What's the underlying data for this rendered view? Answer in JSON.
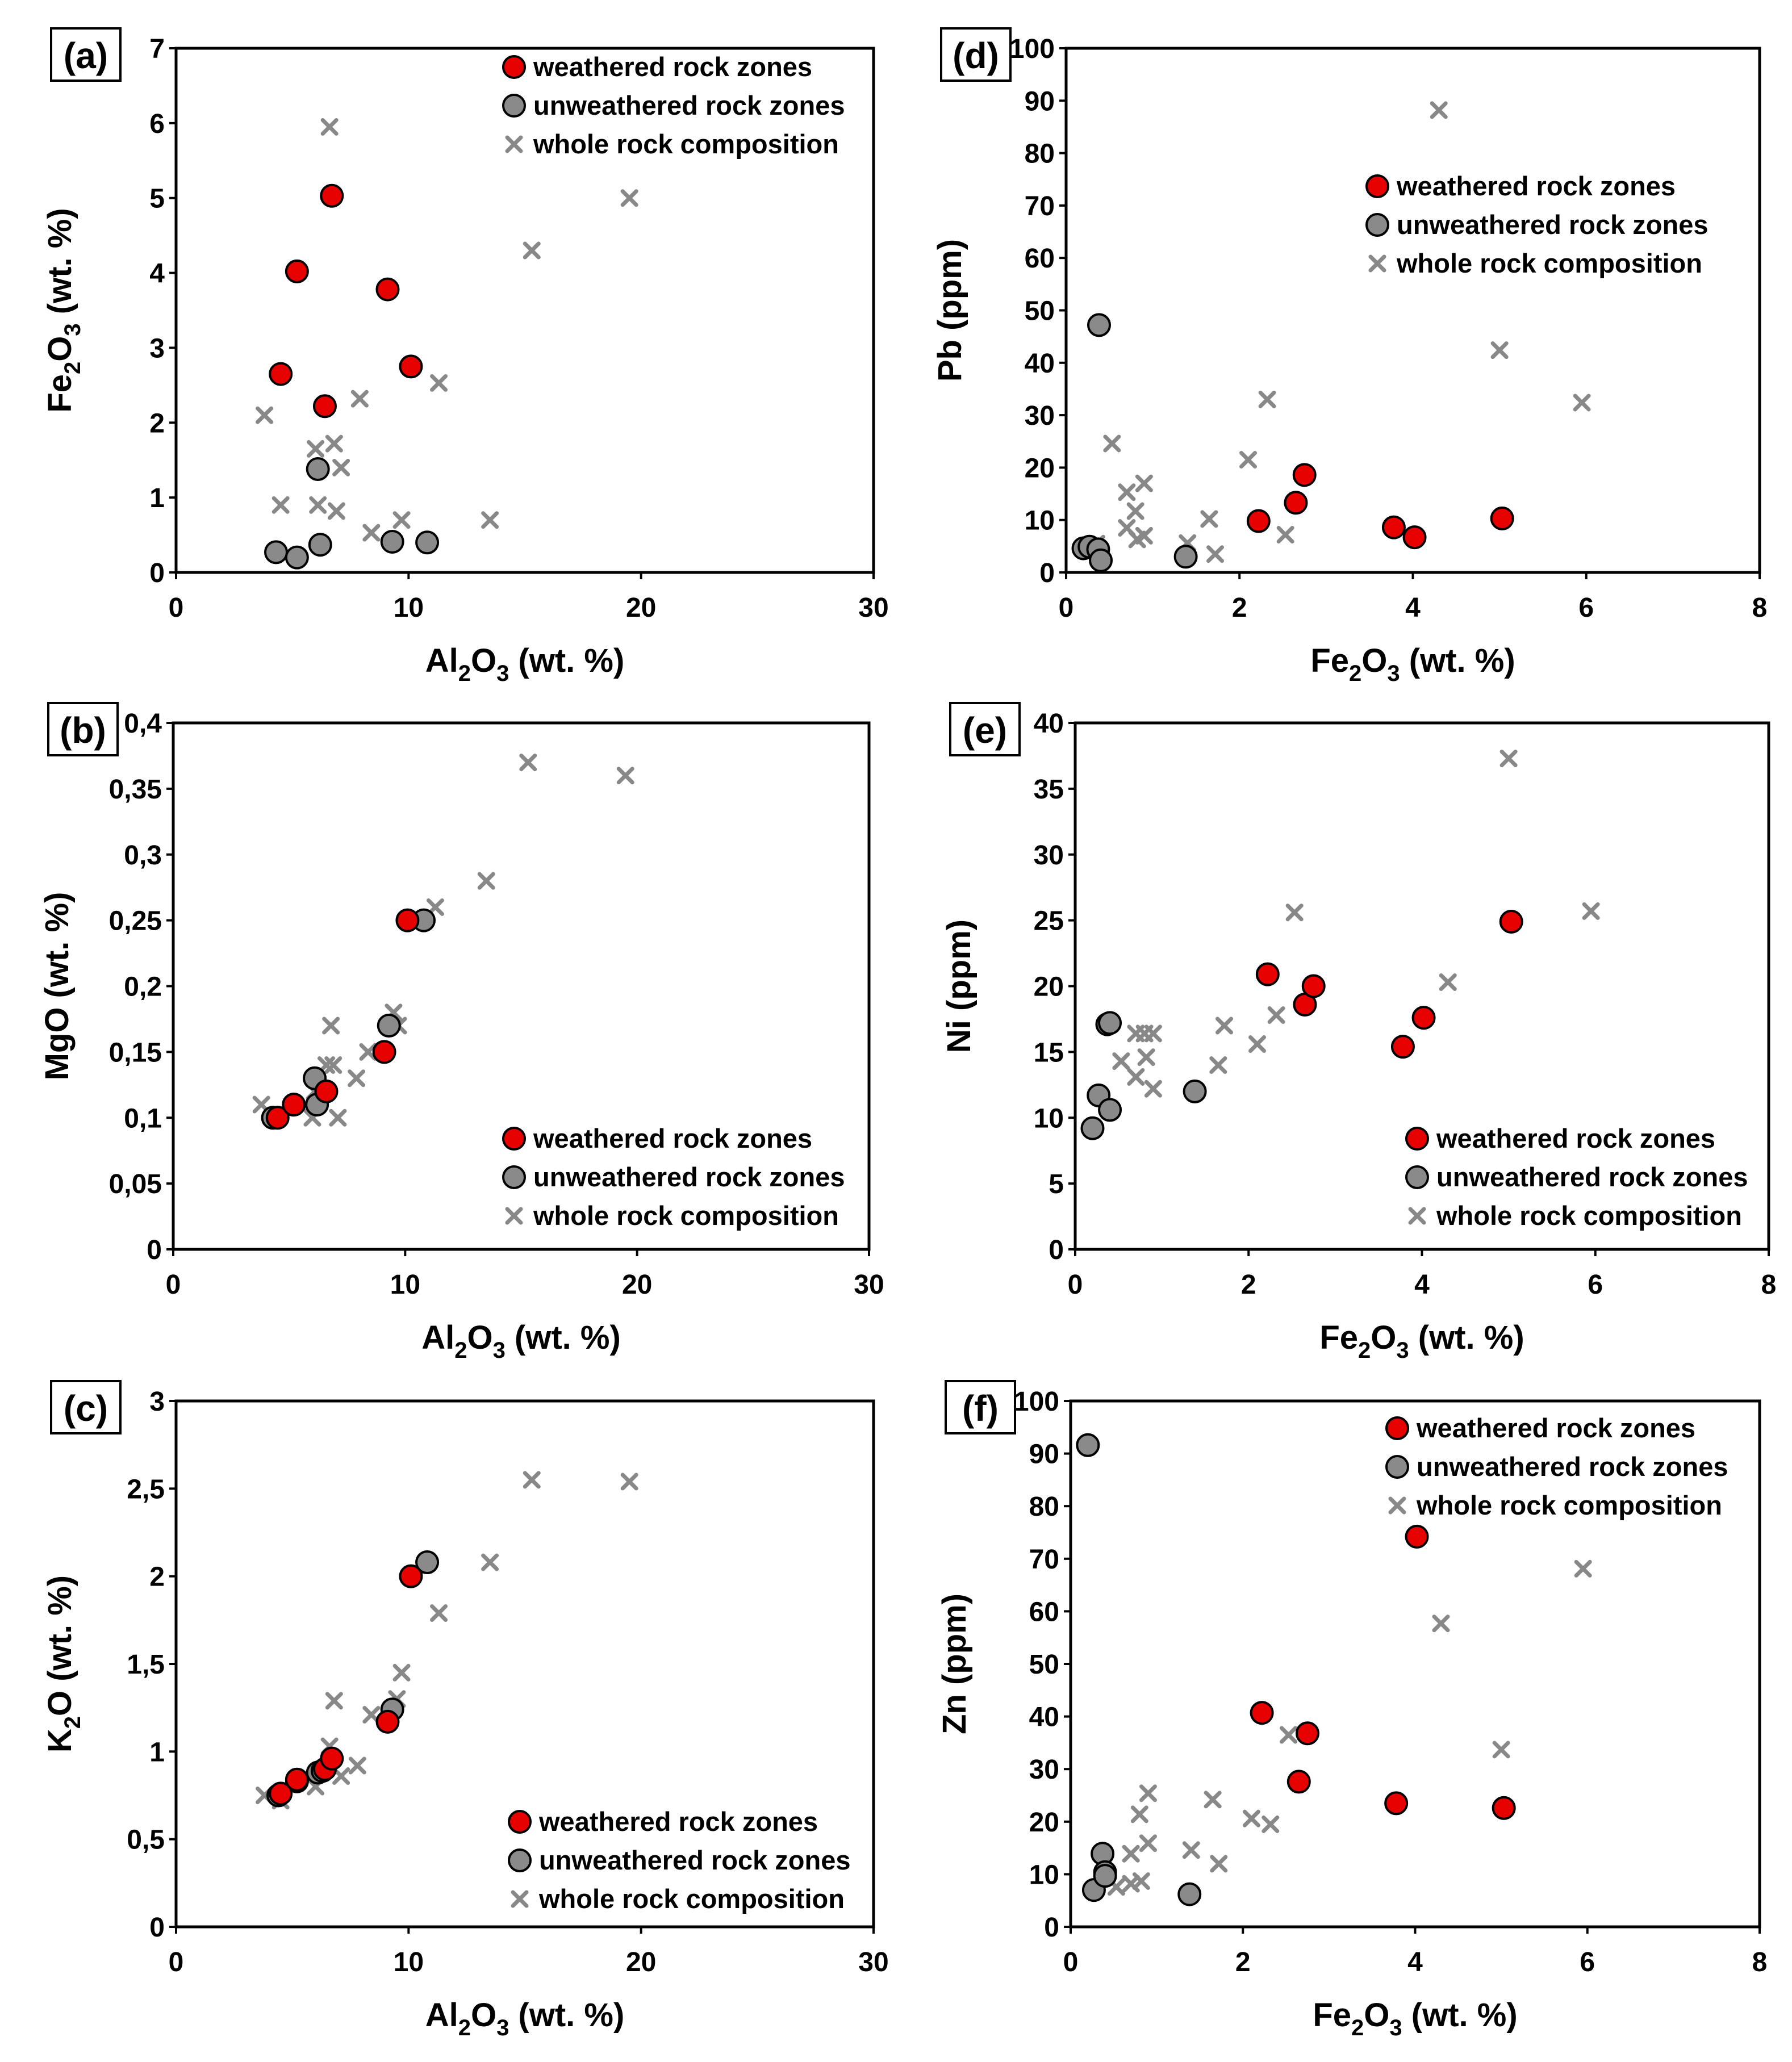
{
  "colors": {
    "weathered": "#e60000",
    "unweathered": "#8a8a8a",
    "whole_rock": "#888888",
    "frame": "#000000"
  },
  "legend": {
    "weathered": "weathered rock zones",
    "unweathered": "unweathered rock zones",
    "whole_rock": "whole rock composition"
  },
  "chart_data": [
    {
      "id": "a",
      "panel_label": "(a)",
      "type": "scatter",
      "xlabel": [
        "Al",
        "2",
        "O",
        "3",
        " (wt. %)"
      ],
      "ylabel": [
        "Fe",
        "2",
        "O",
        "3",
        " (wt. %)"
      ],
      "xlim": [
        0,
        30
      ],
      "ylim": [
        0,
        7
      ],
      "xticks": [
        0,
        10,
        20,
        30
      ],
      "yticks": [
        0,
        1,
        2,
        3,
        4,
        5,
        6,
        7
      ],
      "xtick_labels": [
        "0",
        "10",
        "20",
        "30"
      ],
      "ytick_labels": [
        "0",
        "1",
        "2",
        "3",
        "4",
        "5",
        "6",
        "7"
      ],
      "legend_position": "top-right",
      "series": [
        {
          "name": "weathered rock zones",
          "points": [
            [
              4.5,
              2.65
            ],
            [
              5.2,
              4.02
            ],
            [
              6.4,
              2.22
            ],
            [
              6.7,
              5.03
            ],
            [
              9.1,
              3.78
            ],
            [
              10.1,
              2.75
            ]
          ]
        },
        {
          "name": "unweathered rock zones",
          "points": [
            [
              4.3,
              0.27
            ],
            [
              5.2,
              0.2
            ],
            [
              6.1,
              1.38
            ],
            [
              6.2,
              0.37
            ],
            [
              9.3,
              0.41
            ],
            [
              10.8,
              0.4
            ]
          ]
        },
        {
          "name": "whole rock composition",
          "points": [
            [
              3.8,
              2.1
            ],
            [
              4.5,
              0.9
            ],
            [
              6.0,
              1.65
            ],
            [
              6.1,
              0.9
            ],
            [
              6.6,
              5.95
            ],
            [
              6.8,
              1.72
            ],
            [
              6.9,
              0.82
            ],
            [
              7.1,
              1.4
            ],
            [
              7.9,
              2.32
            ],
            [
              8.4,
              0.53
            ],
            [
              9.7,
              0.7
            ],
            [
              11.3,
              2.53
            ],
            [
              13.5,
              0.7
            ],
            [
              15.3,
              4.3
            ],
            [
              19.5,
              5.0
            ]
          ]
        }
      ]
    },
    {
      "id": "b",
      "panel_label": "(b)",
      "type": "scatter",
      "xlabel": [
        "Al",
        "2",
        "O",
        "3",
        " (wt. %)"
      ],
      "ylabel": [
        "MgO (wt. %)"
      ],
      "xlim": [
        0,
        30
      ],
      "ylim": [
        0,
        0.4
      ],
      "xticks": [
        0,
        10,
        20,
        30
      ],
      "yticks": [
        0,
        0.05,
        0.1,
        0.15,
        0.2,
        0.25,
        0.3,
        0.35,
        0.4
      ],
      "xtick_labels": [
        "0",
        "10",
        "20",
        "30"
      ],
      "ytick_labels": [
        "0",
        "0,05",
        "0,1",
        "0,15",
        "0,2",
        "0,25",
        "0,3",
        "0,35",
        "0,4"
      ],
      "legend_position": "bottom-right",
      "series": [
        {
          "name": "weathered rock zones",
          "points": [
            [
              4.5,
              0.1
            ],
            [
              5.2,
              0.11
            ],
            [
              6.6,
              0.12
            ],
            [
              9.1,
              0.15
            ],
            [
              10.1,
              0.25
            ]
          ]
        },
        {
          "name": "unweathered rock zones",
          "points": [
            [
              4.3,
              0.1
            ],
            [
              5.2,
              0.11
            ],
            [
              6.1,
              0.13
            ],
            [
              6.2,
              0.11
            ],
            [
              9.3,
              0.17
            ],
            [
              10.8,
              0.25
            ]
          ]
        },
        {
          "name": "whole rock composition",
          "points": [
            [
              3.8,
              0.11
            ],
            [
              4.5,
              0.1
            ],
            [
              6.0,
              0.1
            ],
            [
              6.1,
              0.12
            ],
            [
              6.6,
              0.14
            ],
            [
              6.8,
              0.17
            ],
            [
              6.9,
              0.14
            ],
            [
              7.1,
              0.1
            ],
            [
              7.9,
              0.13
            ],
            [
              8.4,
              0.15
            ],
            [
              9.5,
              0.18
            ],
            [
              9.7,
              0.17
            ],
            [
              11.3,
              0.26
            ],
            [
              13.5,
              0.28
            ],
            [
              15.3,
              0.37
            ],
            [
              19.5,
              0.36
            ]
          ]
        }
      ]
    },
    {
      "id": "c",
      "panel_label": "(c)",
      "type": "scatter",
      "xlabel": [
        "Al",
        "2",
        "O",
        "3",
        " (wt. %)"
      ],
      "ylabel": [
        "K",
        "2",
        "O (wt. %)"
      ],
      "xlim": [
        0,
        30
      ],
      "ylim": [
        0,
        3
      ],
      "xticks": [
        0,
        10,
        20,
        30
      ],
      "yticks": [
        0,
        0.5,
        1,
        1.5,
        2,
        2.5,
        3
      ],
      "xtick_labels": [
        "0",
        "10",
        "20",
        "30"
      ],
      "ytick_labels": [
        "0",
        "0,5",
        "1",
        "1,5",
        "2",
        "2,5",
        "3"
      ],
      "legend_position": "bottom-right",
      "series": [
        {
          "name": "weathered rock zones",
          "points": [
            [
              4.5,
              0.76
            ],
            [
              5.2,
              0.84
            ],
            [
              6.4,
              0.9
            ],
            [
              6.7,
              0.96
            ],
            [
              9.1,
              1.17
            ],
            [
              10.1,
              2.0
            ]
          ]
        },
        {
          "name": "unweathered rock zones",
          "points": [
            [
              4.4,
              0.75
            ],
            [
              5.2,
              0.83
            ],
            [
              6.1,
              0.88
            ],
            [
              6.3,
              0.89
            ],
            [
              9.3,
              1.24
            ],
            [
              10.8,
              2.08
            ]
          ]
        },
        {
          "name": "whole rock composition",
          "points": [
            [
              3.8,
              0.75
            ],
            [
              4.5,
              0.72
            ],
            [
              6.0,
              0.8
            ],
            [
              6.6,
              1.03
            ],
            [
              6.8,
              1.29
            ],
            [
              7.1,
              0.86
            ],
            [
              7.8,
              0.92
            ],
            [
              8.4,
              1.21
            ],
            [
              9.5,
              1.3
            ],
            [
              9.7,
              1.45
            ],
            [
              11.3,
              1.79
            ],
            [
              13.5,
              2.08
            ],
            [
              15.3,
              2.55
            ],
            [
              19.5,
              2.54
            ]
          ]
        }
      ]
    },
    {
      "id": "d",
      "panel_label": "(d)",
      "type": "scatter",
      "xlabel": [
        "Fe",
        "2",
        "O",
        "3",
        " (wt. %)"
      ],
      "ylabel": [
        "Pb (ppm)"
      ],
      "xlim": [
        0,
        8
      ],
      "ylim": [
        0,
        100
      ],
      "xticks": [
        0,
        2,
        4,
        6,
        8
      ],
      "yticks": [
        0,
        10,
        20,
        30,
        40,
        50,
        60,
        70,
        80,
        90,
        100
      ],
      "xtick_labels": [
        "0",
        "2",
        "4",
        "6",
        "8"
      ],
      "ytick_labels": [
        "0",
        "10",
        "20",
        "30",
        "40",
        "50",
        "60",
        "70",
        "80",
        "90",
        "100"
      ],
      "legend_position": "upper-right",
      "series": [
        {
          "name": "weathered rock zones",
          "points": [
            [
              2.22,
              9.8
            ],
            [
              2.65,
              13.3
            ],
            [
              2.75,
              18.6
            ],
            [
              3.78,
              8.6
            ],
            [
              4.02,
              6.7
            ],
            [
              5.03,
              10.3
            ]
          ]
        },
        {
          "name": "unweathered rock zones",
          "points": [
            [
              0.2,
              4.6
            ],
            [
              0.27,
              4.9
            ],
            [
              0.37,
              4.4
            ],
            [
              0.4,
              2.3
            ],
            [
              0.38,
              47.2
            ],
            [
              1.38,
              3.0
            ]
          ]
        },
        {
          "name": "whole rock composition",
          "points": [
            [
              0.35,
              5.5
            ],
            [
              0.53,
              24.6
            ],
            [
              0.7,
              15.3
            ],
            [
              0.7,
              8.5
            ],
            [
              0.8,
              11.7
            ],
            [
              0.82,
              6.3
            ],
            [
              0.9,
              17.0
            ],
            [
              0.9,
              7.0
            ],
            [
              1.4,
              5.6
            ],
            [
              1.65,
              10.2
            ],
            [
              1.72,
              3.5
            ],
            [
              2.1,
              21.5
            ],
            [
              2.32,
              33.0
            ],
            [
              2.53,
              7.2
            ],
            [
              4.3,
              88.2
            ],
            [
              5.0,
              42.4
            ],
            [
              5.95,
              32.4
            ]
          ]
        }
      ]
    },
    {
      "id": "e",
      "panel_label": "(e)",
      "type": "scatter",
      "xlabel": [
        "Fe",
        "2",
        "O",
        "3",
        " (wt. %)"
      ],
      "ylabel": [
        "Ni (ppm)"
      ],
      "xlim": [
        0,
        8
      ],
      "ylim": [
        0,
        40
      ],
      "xticks": [
        0,
        2,
        4,
        6,
        8
      ],
      "yticks": [
        0,
        5,
        10,
        15,
        20,
        25,
        30,
        35,
        40
      ],
      "xtick_labels": [
        "0",
        "2",
        "4",
        "6",
        "8"
      ],
      "ytick_labels": [
        "0",
        "5",
        "10",
        "15",
        "20",
        "25",
        "30",
        "35",
        "40"
      ],
      "legend_position": "bottom-right",
      "series": [
        {
          "name": "weathered rock zones",
          "points": [
            [
              2.22,
              20.9
            ],
            [
              2.65,
              18.6
            ],
            [
              2.75,
              20.0
            ],
            [
              3.78,
              15.4
            ],
            [
              4.02,
              17.6
            ],
            [
              5.03,
              24.9
            ]
          ]
        },
        {
          "name": "unweathered rock zones",
          "points": [
            [
              0.2,
              9.2
            ],
            [
              0.27,
              11.7
            ],
            [
              0.37,
              17.1
            ],
            [
              0.4,
              17.2
            ],
            [
              0.4,
              10.6
            ],
            [
              1.38,
              12.0
            ]
          ]
        },
        {
          "name": "whole rock composition",
          "points": [
            [
              0.53,
              14.3
            ],
            [
              0.7,
              13.1
            ],
            [
              0.7,
              16.4
            ],
            [
              0.8,
              16.4
            ],
            [
              0.82,
              14.6
            ],
            [
              0.9,
              12.2
            ],
            [
              0.9,
              16.4
            ],
            [
              1.65,
              14.0
            ],
            [
              1.72,
              17.0
            ],
            [
              2.1,
              15.6
            ],
            [
              2.32,
              17.8
            ],
            [
              2.53,
              25.6
            ],
            [
              4.3,
              20.3
            ],
            [
              5.0,
              37.3
            ],
            [
              5.95,
              25.7
            ]
          ]
        }
      ]
    },
    {
      "id": "f",
      "panel_label": "(f)",
      "type": "scatter",
      "xlabel": [
        "Fe",
        "2",
        "O",
        "3",
        " (wt. %)"
      ],
      "ylabel": [
        "Zn (ppm)"
      ],
      "xlim": [
        0,
        8
      ],
      "ylim": [
        0,
        100
      ],
      "xticks": [
        0,
        2,
        4,
        6,
        8
      ],
      "yticks": [
        0,
        10,
        20,
        30,
        40,
        50,
        60,
        70,
        80,
        90,
        100
      ],
      "xtick_labels": [
        "0",
        "2",
        "4",
        "6",
        "8"
      ],
      "ytick_labels": [
        "0",
        "10",
        "20",
        "30",
        "40",
        "50",
        "60",
        "70",
        "80",
        "90",
        "100"
      ],
      "legend_position": "top-right",
      "series": [
        {
          "name": "weathered rock zones",
          "points": [
            [
              2.22,
              40.7
            ],
            [
              2.65,
              27.6
            ],
            [
              2.75,
              36.8
            ],
            [
              3.78,
              23.5
            ],
            [
              4.02,
              74.2
            ],
            [
              5.03,
              22.6
            ]
          ]
        },
        {
          "name": "unweathered rock zones",
          "points": [
            [
              0.2,
              91.6
            ],
            [
              0.27,
              7.0
            ],
            [
              0.37,
              13.9
            ],
            [
              0.4,
              10.4
            ],
            [
              0.4,
              9.7
            ],
            [
              1.38,
              6.2
            ]
          ]
        },
        {
          "name": "whole rock composition",
          "points": [
            [
              0.53,
              7.6
            ],
            [
              0.7,
              13.9
            ],
            [
              0.7,
              8.2
            ],
            [
              0.8,
              21.4
            ],
            [
              0.82,
              8.7
            ],
            [
              0.9,
              15.9
            ],
            [
              0.9,
              25.4
            ],
            [
              1.4,
              14.6
            ],
            [
              1.65,
              24.2
            ],
            [
              1.72,
              12.0
            ],
            [
              2.1,
              20.6
            ],
            [
              2.32,
              19.5
            ],
            [
              2.53,
              36.5
            ],
            [
              4.3,
              57.7
            ],
            [
              5.0,
              33.7
            ],
            [
              5.95,
              68.1
            ]
          ]
        }
      ]
    }
  ]
}
